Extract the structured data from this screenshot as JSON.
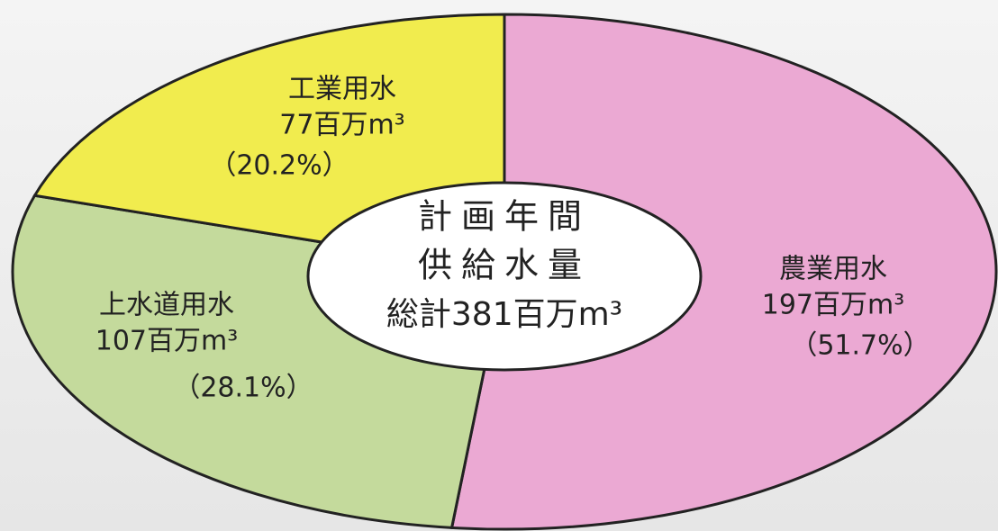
{
  "chart_data": {
    "type": "pie",
    "categories": [
      "農業用水",
      "上水道用水",
      "工業用水"
    ],
    "values": [
      197,
      107,
      77
    ],
    "value_labels": [
      "197百万m³",
      "107百万m³",
      "77百万m³"
    ],
    "percent_labels": [
      "（51.7%）",
      "（28.1%）",
      "（20.2%）"
    ],
    "colors": [
      "#eba9d3",
      "#c4da9c",
      "#f1ec4e"
    ],
    "center_label": [
      "計画年間",
      "供給水量",
      "総計381百万m³"
    ]
  }
}
